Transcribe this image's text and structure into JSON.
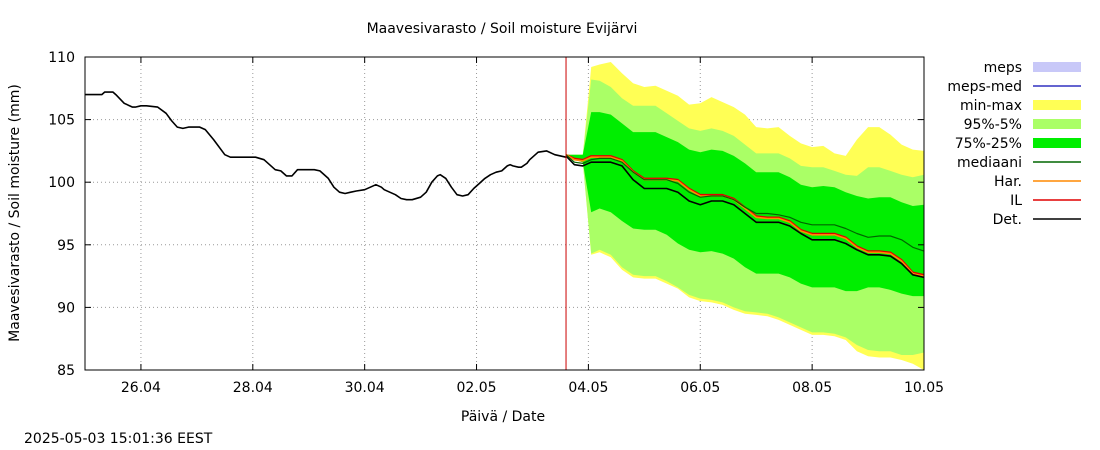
{
  "chart_data": {
    "type": "line",
    "title": "Maavesivarasto / Soil moisture   Evijärvi",
    "xlabel": "Päivä / Date",
    "ylabel": "Maavesivarasto / Soil moisture (mm)",
    "ylim": [
      85,
      110
    ],
    "xlim": [
      0,
      15
    ],
    "x_unit": "days since 25.04 00:00",
    "yticks": [
      85,
      90,
      95,
      100,
      105,
      110
    ],
    "xticks": [
      {
        "x": 1,
        "label": "26.04"
      },
      {
        "x": 3,
        "label": "28.04"
      },
      {
        "x": 5,
        "label": "30.04"
      },
      {
        "x": 7,
        "label": "02.05"
      },
      {
        "x": 9,
        "label": "04.05"
      },
      {
        "x": 11,
        "label": "06.05"
      },
      {
        "x": 13,
        "label": "08.05"
      },
      {
        "x": 15,
        "label": "10.05"
      }
    ],
    "grid": true,
    "legend_position": "right",
    "now_marker_x": 8.6,
    "colors": {
      "meps": "#c8c8f8",
      "meps_med": "#3030c0",
      "min_max": "#ffff55",
      "p95_5": "#aaff66",
      "p75_25": "#00ee00",
      "median": "#006600",
      "har": "#ff8800",
      "il": "#e00000",
      "det": "#000000",
      "now_line": "#cc0000"
    },
    "legend": [
      {
        "key": "meps",
        "label": "meps",
        "kind": "box"
      },
      {
        "key": "meps_med",
        "label": "meps-med",
        "kind": "line"
      },
      {
        "key": "min_max",
        "label": "min-max",
        "kind": "box"
      },
      {
        "key": "p95_5",
        "label": "95%-5%",
        "kind": "box"
      },
      {
        "key": "p75_25",
        "label": "75%-25%",
        "kind": "box"
      },
      {
        "key": "median",
        "label": "mediaani",
        "kind": "line"
      },
      {
        "key": "har",
        "label": "Har.",
        "kind": "line"
      },
      {
        "key": "il",
        "label": "IL",
        "kind": "line"
      },
      {
        "key": "det",
        "label": "Det.",
        "kind": "line"
      }
    ],
    "history": {
      "x": [
        0,
        0.3,
        0.35,
        0.5,
        0.55,
        0.7,
        0.85,
        0.9,
        1.0,
        1.1,
        1.3,
        1.45,
        1.55,
        1.65,
        1.75,
        1.85,
        1.95,
        2.05,
        2.15,
        2.3,
        2.5,
        2.6,
        2.7,
        2.8,
        2.9,
        3.05,
        3.2,
        3.4,
        3.5,
        3.6,
        3.7,
        3.8,
        3.9,
        4.0,
        4.1,
        4.2,
        4.35,
        4.45,
        4.55,
        4.65,
        4.75,
        4.85,
        5.0,
        5.1,
        5.2,
        5.3,
        5.35,
        5.45,
        5.55,
        5.65,
        5.75,
        5.85,
        6.0,
        6.1,
        6.2,
        6.3,
        6.35,
        6.45,
        6.55,
        6.65,
        6.75,
        6.85,
        6.95,
        7.05,
        7.15,
        7.25,
        7.35,
        7.45,
        7.55,
        7.6,
        7.65,
        7.75,
        7.8,
        7.9,
        7.95,
        8.1,
        8.25,
        8.4,
        8.6
      ],
      "y": [
        107.0,
        107.0,
        107.2,
        107.2,
        107.0,
        106.3,
        106.0,
        106.0,
        106.1,
        106.1,
        106.0,
        105.5,
        104.9,
        104.4,
        104.3,
        104.4,
        104.4,
        104.4,
        104.2,
        103.4,
        102.2,
        102.0,
        102.0,
        102.0,
        102.0,
        102.0,
        101.8,
        101.0,
        100.9,
        100.5,
        100.5,
        101.0,
        101.0,
        101.0,
        101.0,
        100.9,
        100.3,
        99.6,
        99.2,
        99.1,
        99.2,
        99.3,
        99.4,
        99.6,
        99.8,
        99.6,
        99.4,
        99.2,
        99.0,
        98.7,
        98.6,
        98.6,
        98.8,
        99.2,
        100.0,
        100.5,
        100.6,
        100.3,
        99.6,
        99.0,
        98.9,
        99.0,
        99.5,
        99.9,
        100.3,
        100.6,
        100.8,
        100.9,
        101.3,
        101.4,
        101.3,
        101.2,
        101.2,
        101.5,
        101.8,
        102.4,
        102.5,
        102.2,
        102.0
      ]
    },
    "forecast_x": [
      8.6,
      8.75,
      8.9,
      9.05,
      9.2,
      9.4,
      9.6,
      9.8,
      10.0,
      10.2,
      10.4,
      10.6,
      10.8,
      11.0,
      11.2,
      11.4,
      11.6,
      11.8,
      12.0,
      12.2,
      12.4,
      12.6,
      12.8,
      13.0,
      13.2,
      13.4,
      13.6,
      13.8,
      14.0,
      14.2,
      14.4,
      14.6,
      14.8,
      15.0
    ],
    "series": [
      {
        "name": "IL",
        "key": "il",
        "values": [
          102.2,
          101.9,
          101.8,
          102.1,
          102.1,
          102.1,
          101.8,
          100.9,
          100.3,
          100.3,
          100.3,
          100.2,
          99.5,
          99.0,
          99.0,
          99.0,
          98.7,
          98.0,
          97.3,
          97.2,
          97.2,
          96.9,
          96.2,
          95.9,
          95.9,
          95.9,
          95.6,
          94.9,
          94.5,
          94.5,
          94.4,
          93.8,
          92.8,
          92.6
        ]
      },
      {
        "name": "Har.",
        "key": "har",
        "values": [
          102.2,
          101.8,
          101.7,
          102.0,
          102.0,
          102.0,
          101.7,
          100.8,
          100.2,
          100.2,
          100.2,
          100.1,
          99.4,
          98.9,
          98.9,
          98.9,
          98.6,
          97.9,
          97.2,
          97.1,
          97.1,
          96.8,
          96.1,
          95.8,
          95.8,
          95.8,
          95.5,
          94.8,
          94.4,
          94.4,
          94.3,
          93.7,
          92.7,
          92.5
        ]
      },
      {
        "name": "Det.",
        "key": "det",
        "values": [
          102.1,
          101.4,
          101.3,
          101.6,
          101.6,
          101.6,
          101.3,
          100.2,
          99.5,
          99.5,
          99.5,
          99.2,
          98.5,
          98.2,
          98.5,
          98.5,
          98.2,
          97.5,
          96.8,
          96.8,
          96.8,
          96.5,
          95.9,
          95.4,
          95.4,
          95.4,
          95.1,
          94.6,
          94.2,
          94.2,
          94.1,
          93.5,
          92.6,
          92.4
        ]
      },
      {
        "name": "mediaani",
        "key": "median",
        "values": [
          102.2,
          101.6,
          101.5,
          101.8,
          101.9,
          101.9,
          101.6,
          100.8,
          100.2,
          100.2,
          100.2,
          99.9,
          99.2,
          98.8,
          98.9,
          98.9,
          98.6,
          98.0,
          97.5,
          97.5,
          97.4,
          97.2,
          96.8,
          96.6,
          96.6,
          96.6,
          96.3,
          95.9,
          95.6,
          95.7,
          95.7,
          95.4,
          94.8,
          94.5
        ]
      }
    ],
    "bands": [
      {
        "name": "min-max",
        "key": "min_max",
        "lower": [
          102.1,
          101.8,
          101.6,
          94.2,
          94.4,
          94.0,
          93.0,
          92.4,
          92.3,
          92.3,
          91.9,
          91.5,
          90.8,
          90.5,
          90.4,
          90.2,
          89.8,
          89.5,
          89.4,
          89.3,
          89.0,
          88.6,
          88.2,
          87.8,
          87.8,
          87.7,
          87.4,
          86.5,
          86.1,
          86.0,
          86.0,
          85.8,
          85.5,
          85.0
        ],
        "upper": [
          102.2,
          102.2,
          102.2,
          109.2,
          109.4,
          109.6,
          108.7,
          107.9,
          107.6,
          107.7,
          107.3,
          106.9,
          106.2,
          106.3,
          106.8,
          106.4,
          106.0,
          105.4,
          104.4,
          104.3,
          104.4,
          103.7,
          103.1,
          102.8,
          102.9,
          102.3,
          102.1,
          103.4,
          104.4,
          104.4,
          103.8,
          103.0,
          102.6,
          102.5
        ]
      },
      {
        "name": "95%-5%",
        "key": "p95_5",
        "lower": [
          102.1,
          101.8,
          101.6,
          94.3,
          94.6,
          94.2,
          93.2,
          92.6,
          92.5,
          92.5,
          92.1,
          91.6,
          91.0,
          90.7,
          90.6,
          90.4,
          90.0,
          89.7,
          89.6,
          89.5,
          89.2,
          88.8,
          88.4,
          88.0,
          88.0,
          87.9,
          87.6,
          87.0,
          86.6,
          86.5,
          86.5,
          86.2,
          86.2,
          86.4
        ],
        "upper": [
          102.2,
          102.2,
          102.2,
          108.2,
          108.1,
          107.6,
          106.7,
          106.1,
          106.1,
          106.1,
          105.5,
          104.9,
          104.3,
          104.1,
          104.3,
          104.1,
          103.7,
          103.0,
          102.3,
          102.3,
          102.3,
          101.9,
          101.3,
          101.2,
          101.2,
          100.9,
          100.6,
          100.5,
          101.2,
          101.2,
          100.9,
          100.6,
          100.4,
          100.6
        ]
      },
      {
        "name": "75%-25%",
        "key": "p75_25",
        "lower": [
          102.1,
          101.8,
          101.6,
          97.6,
          97.9,
          97.6,
          96.9,
          96.3,
          96.2,
          96.2,
          95.8,
          95.1,
          94.6,
          94.4,
          94.5,
          94.3,
          93.9,
          93.2,
          92.7,
          92.7,
          92.7,
          92.4,
          91.9,
          91.6,
          91.6,
          91.6,
          91.3,
          91.3,
          91.6,
          91.6,
          91.4,
          91.1,
          90.9,
          90.9
        ],
        "upper": [
          102.2,
          102.2,
          102.2,
          105.6,
          105.6,
          105.4,
          104.7,
          104.0,
          104.0,
          104.0,
          103.6,
          103.2,
          102.6,
          102.4,
          102.6,
          102.5,
          102.1,
          101.5,
          100.8,
          100.8,
          100.8,
          100.4,
          99.8,
          99.6,
          99.7,
          99.6,
          99.2,
          98.9,
          98.7,
          98.8,
          98.8,
          98.4,
          98.1,
          98.2
        ]
      }
    ]
  },
  "footer": {
    "timestamp": "2025-05-03 15:01:36 EEST"
  }
}
